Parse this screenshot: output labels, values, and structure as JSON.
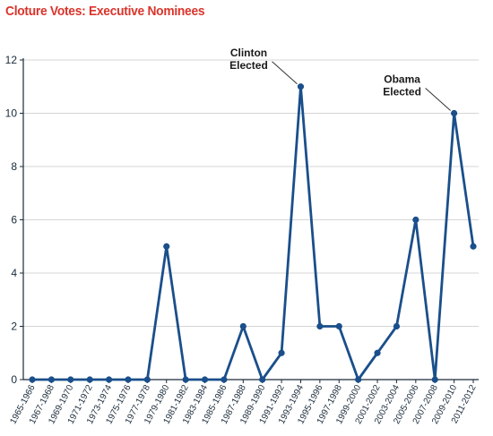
{
  "chart_data": {
    "type": "line",
    "title": "Cloture Votes: Executive Nominees",
    "xlabel": "",
    "ylabel": "",
    "ylim": [
      0,
      12
    ],
    "yticks": [
      0,
      2,
      4,
      6,
      8,
      10,
      12
    ],
    "grid": true,
    "line_color": "#1a4f8b",
    "categories": [
      "1965-1966",
      "1967-1968",
      "1969-1970",
      "1971-1972",
      "1973-1974",
      "1975-1976",
      "1977-1978",
      "1979-1980",
      "1981-1982",
      "1983-1984",
      "1985-1986",
      "1987-1988",
      "1989-1990",
      "1991-1992",
      "1993-1994",
      "1995-1996",
      "1997-1998",
      "1999-2000",
      "2001-2002",
      "2003-2004",
      "2005-2006",
      "2007-2008",
      "2009-2010",
      "2011-2012"
    ],
    "series": [
      {
        "values": [
          0,
          0,
          0,
          0,
          0,
          0,
          0,
          5,
          0,
          0,
          0,
          2,
          0,
          1,
          11,
          2,
          2,
          0,
          1,
          2,
          6,
          0,
          10,
          5
        ]
      }
    ],
    "annotations": [
      {
        "line1": "Clinton",
        "line2": "Elected",
        "category": "1993-1994"
      },
      {
        "line1": "Obama",
        "line2": "Elected",
        "category": "2009-2010"
      }
    ]
  }
}
